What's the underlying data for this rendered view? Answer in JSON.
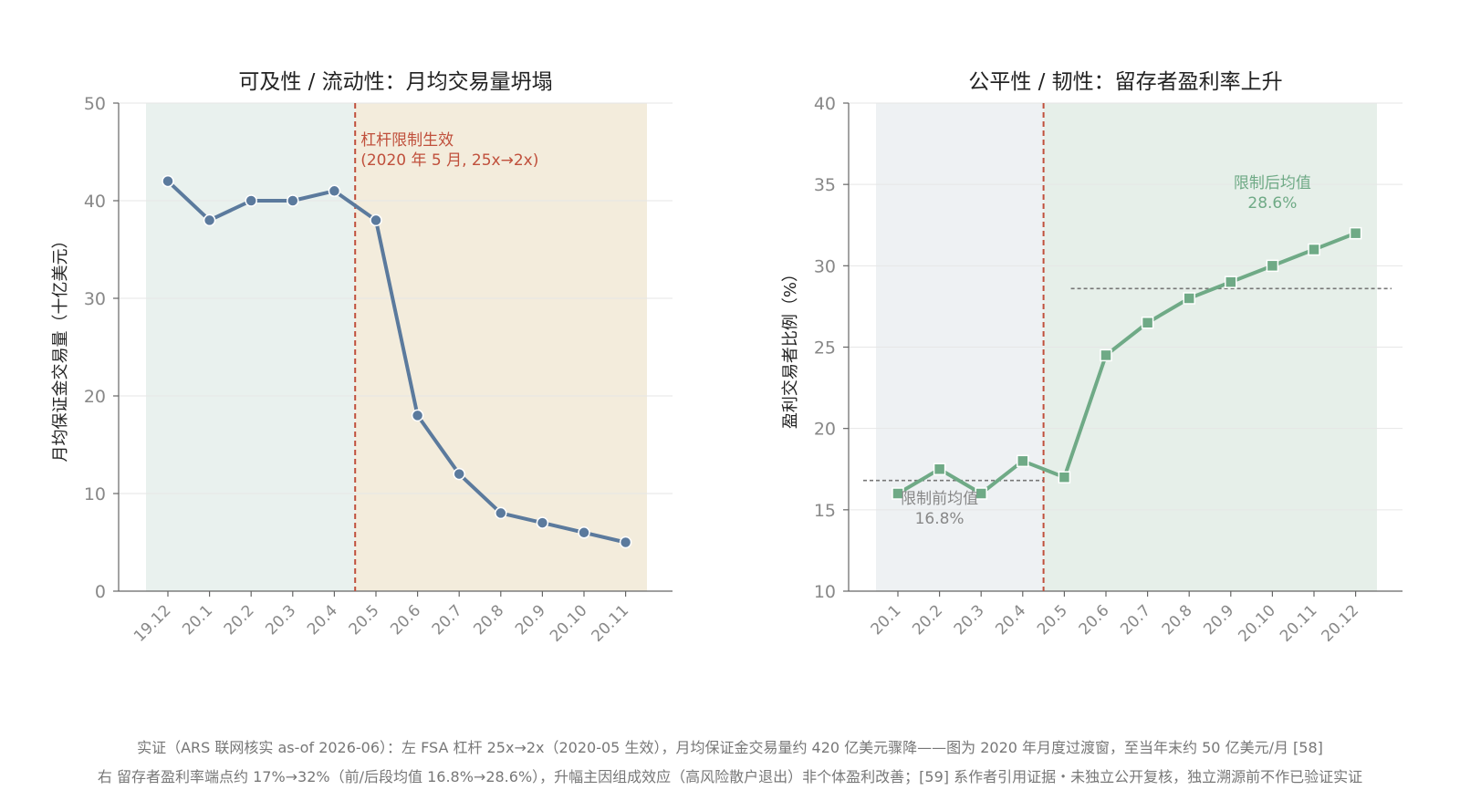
{
  "colors": {
    "left_line": "#5b7a9d",
    "right_line": "#6faa86",
    "event_line": "#c0503c",
    "pre_shade": "#e9f1ee",
    "post_shade_left": "#f3ecdc",
    "pre_shade_right": "#eef1f3",
    "post_shade_right": "#e6efe9",
    "grid": "#e6e6e6",
    "axis": "#666666",
    "tick_text": "#888888",
    "title_text": "#222222",
    "mean_line": "#777777",
    "caption_text": "#777777"
  },
  "chart_data": [
    {
      "type": "line",
      "title": "可及性 / 流动性：月均交易量坍塌",
      "ylabel": "月均保证金交易量（十亿美元）",
      "xlabel": "",
      "ylim": [
        0,
        50
      ],
      "yticks": [
        0,
        10,
        20,
        30,
        40,
        50
      ],
      "grid": true,
      "marker": "circle",
      "categories": [
        "19.12",
        "20.1",
        "20.2",
        "20.3",
        "20.4",
        "20.5",
        "20.6",
        "20.7",
        "20.8",
        "20.9",
        "20.10",
        "20.11"
      ],
      "series": [
        {
          "values": [
            42,
            38,
            40,
            40,
            41,
            38,
            18,
            12,
            8,
            7,
            6,
            5
          ]
        }
      ],
      "event_after_index": 4,
      "annotation": {
        "line1": "杠杆限制生效",
        "line2": "(2020 年 5 月, 25x→2x)"
      }
    },
    {
      "type": "line",
      "title": "公平性 / 韧性：留存者盈利率上升",
      "ylabel": "盈利交易者比例（%）",
      "xlabel": "",
      "ylim": [
        10,
        40
      ],
      "yticks": [
        10,
        15,
        20,
        25,
        30,
        35,
        40
      ],
      "grid": true,
      "marker": "square",
      "categories": [
        "20.1",
        "20.2",
        "20.3",
        "20.4",
        "20.5",
        "20.6",
        "20.7",
        "20.8",
        "20.9",
        "20.10",
        "20.11",
        "20.12"
      ],
      "series": [
        {
          "values": [
            16,
            17.5,
            16,
            18,
            17,
            24.5,
            26.5,
            28,
            29,
            30,
            31,
            32
          ]
        }
      ],
      "event_after_index": 3,
      "pre_mean": {
        "value": 16.8,
        "label1": "限制前均值",
        "label2": "16.8%"
      },
      "post_mean": {
        "value": 28.6,
        "label1": "限制后均值",
        "label2": "28.6%"
      }
    }
  ],
  "captions": {
    "line1": "实证（ARS 联网核实 as-of 2026-06）：左 FSA 杠杆 25x→2x（2020-05 生效），月均保证金交易量约 420 亿美元骤降——图为 2020 年月度过渡窗，至当年末约 50 亿美元/月 [58]",
    "line2": "右 留存者盈利率端点约 17%→32%（前/后段均值 16.8%→28.6%），升幅主因组成效应（高风险散户退出）非个体盈利改善；[59] 系作者引用证据・未独立公开复核，独立溯源前不作已验证实证"
  }
}
